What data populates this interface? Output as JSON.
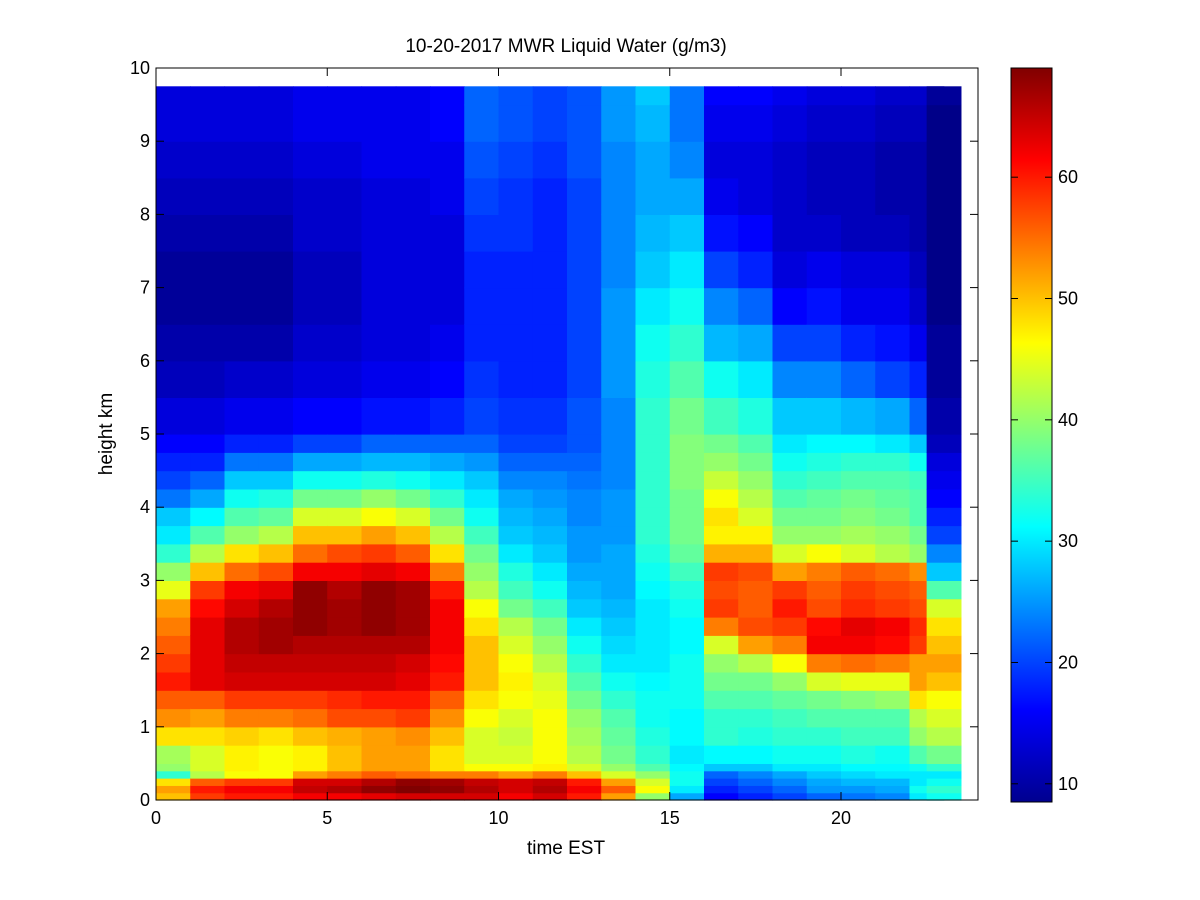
{
  "chart_data": {
    "type": "heatmap",
    "title": "10-20-2017 MWR Liquid Water (g/m3)",
    "xlabel": "time EST",
    "ylabel": "height km",
    "xlim": [
      0,
      24
    ],
    "ylim": [
      0,
      10
    ],
    "x_ticks": [
      0,
      5,
      10,
      15,
      20
    ],
    "y_ticks": [
      0,
      1,
      2,
      3,
      4,
      5,
      6,
      7,
      8,
      9,
      10
    ],
    "colorbar": {
      "colormap": "jet",
      "range": [
        8.5,
        69
      ],
      "ticks": [
        10,
        20,
        30,
        40,
        50,
        60
      ]
    },
    "x_centers": [
      0.5,
      1.5,
      2.5,
      3.5,
      4.5,
      5.5,
      6.5,
      7.5,
      8.5,
      9.5,
      10.5,
      11.5,
      12.5,
      13.5,
      14.5,
      15.5,
      16.5,
      17.5,
      18.5,
      19.5,
      20.5,
      21.5,
      22.5,
      23.0
    ],
    "x_bin_width": 1,
    "y_levels_km": [
      0,
      0.1,
      0.2,
      0.3,
      0.4,
      0.5,
      0.75,
      1.0,
      1.25,
      1.5,
      1.75,
      2.0,
      2.25,
      2.5,
      2.75,
      3.0,
      3.25,
      3.5,
      3.75,
      4.0,
      4.25,
      4.5,
      4.75,
      5.0,
      5.5,
      6.0,
      6.5,
      7.0,
      7.5,
      8.0,
      8.5,
      9.0,
      9.5,
      9.75
    ],
    "profiles": [
      [
        50,
        52,
        48,
        34,
        40,
        41,
        48,
        53,
        56,
        60,
        58,
        56,
        54,
        52,
        45,
        40,
        34,
        30,
        28,
        23,
        20,
        18,
        16,
        14,
        12,
        11,
        10,
        10,
        11,
        12,
        13,
        14,
        14,
        14
      ],
      [
        58,
        60,
        56,
        42,
        44,
        44,
        48,
        52,
        56,
        63,
        63,
        63,
        63,
        61,
        58,
        50,
        42,
        36,
        31,
        26,
        22,
        18,
        16,
        14,
        12,
        11,
        10,
        10,
        11,
        12,
        13,
        14,
        14,
        14
      ],
      [
        60,
        62,
        58,
        46,
        47,
        47,
        49,
        54,
        58,
        64,
        65,
        66,
        66,
        64,
        62,
        55,
        48,
        40,
        36,
        32,
        28,
        23,
        18,
        15,
        13,
        11,
        10,
        10,
        11,
        12,
        13,
        14,
        14,
        14
      ],
      [
        60,
        62,
        58,
        46,
        46,
        46,
        48,
        54,
        58,
        64,
        65,
        67,
        67,
        66,
        63,
        57,
        50,
        42,
        37,
        33,
        28,
        23,
        18,
        15,
        13,
        11,
        10,
        10,
        11,
        12,
        13,
        14,
        14,
        14
      ],
      [
        62,
        65,
        64,
        52,
        47,
        47,
        50,
        55,
        58,
        64,
        65,
        66,
        68,
        68,
        68,
        62,
        55,
        50,
        44,
        38,
        32,
        26,
        20,
        16,
        14,
        13,
        12,
        12,
        13,
        13,
        14,
        15,
        15,
        15
      ],
      [
        62,
        66,
        64,
        54,
        50,
        50,
        51,
        57,
        59,
        64,
        65,
        66,
        67,
        67,
        66,
        62,
        57,
        50,
        44,
        38,
        32,
        26,
        20,
        16,
        14,
        13,
        12,
        12,
        13,
        13,
        14,
        15,
        15,
        15
      ],
      [
        63,
        68,
        66,
        56,
        52,
        52,
        52,
        57,
        60,
        64,
        65,
        66,
        68,
        68,
        68,
        63,
        58,
        52,
        46,
        40,
        33,
        27,
        22,
        17,
        15,
        14,
        14,
        14,
        14,
        14,
        15,
        15,
        15,
        15
      ],
      [
        64,
        69,
        68,
        55,
        52,
        52,
        53,
        58,
        60,
        63,
        64,
        66,
        67,
        67,
        67,
        62,
        56,
        50,
        44,
        38,
        32,
        27,
        22,
        17,
        15,
        14,
        14,
        14,
        14,
        14,
        15,
        15,
        15,
        15
      ],
      [
        64,
        68,
        67,
        54,
        48,
        48,
        50,
        53,
        56,
        60,
        61,
        62,
        62,
        62,
        60,
        54,
        48,
        42,
        38,
        34,
        30,
        26,
        22,
        18,
        16,
        15,
        14,
        14,
        14,
        15,
        15,
        16,
        16,
        16
      ],
      [
        64,
        66,
        65,
        54,
        46,
        44,
        44,
        46,
        48,
        50,
        50,
        50,
        48,
        46,
        42,
        40,
        38,
        35,
        32,
        30,
        28,
        25,
        22,
        20,
        19,
        18,
        18,
        18,
        19,
        20,
        21,
        22,
        22,
        22
      ],
      [
        62,
        64,
        64,
        52,
        46,
        44,
        43,
        44,
        46,
        47,
        46,
        44,
        42,
        38,
        35,
        33,
        30,
        28,
        27,
        26,
        24,
        22,
        20,
        19,
        18,
        18,
        18,
        18,
        19,
        19,
        20,
        21,
        21,
        21
      ],
      [
        64,
        66,
        65,
        54,
        47,
        46,
        46,
        46,
        45,
        44,
        42,
        40,
        38,
        35,
        32,
        30,
        28,
        27,
        26,
        25,
        24,
        22,
        20,
        19,
        18,
        18,
        18,
        18,
        18,
        18,
        19,
        20,
        20,
        20
      ],
      [
        60,
        62,
        60,
        50,
        44,
        42,
        41,
        40,
        38,
        36,
        34,
        32,
        30,
        28,
        27,
        26,
        25,
        25,
        24,
        24,
        23,
        22,
        21,
        21,
        20,
        20,
        20,
        20,
        20,
        20,
        21,
        21,
        21,
        21
      ],
      [
        52,
        56,
        52,
        44,
        40,
        38,
        37,
        36,
        34,
        32,
        30,
        29,
        28,
        27,
        26,
        26,
        26,
        25,
        25,
        25,
        24,
        24,
        24,
        24,
        25,
        25,
        25,
        24,
        24,
        24,
        24,
        25,
        25,
        25
      ],
      [
        40,
        46,
        44,
        40,
        36,
        34,
        33,
        32,
        32,
        31,
        30,
        30,
        30,
        30,
        31,
        32,
        33,
        34,
        34,
        34,
        34,
        34,
        34,
        34,
        33,
        32,
        30,
        28,
        27,
        26,
        26,
        27,
        28,
        28
      ],
      [
        26,
        30,
        32,
        32,
        31,
        30,
        31,
        31,
        32,
        32,
        32,
        31,
        31,
        32,
        33,
        35,
        37,
        38,
        38,
        38,
        39,
        39,
        39,
        38,
        36,
        34,
        32,
        30,
        28,
        26,
        24,
        23,
        23,
        23
      ],
      [
        16,
        18,
        20,
        22,
        28,
        31,
        34,
        34,
        36,
        38,
        40,
        44,
        54,
        58,
        57,
        58,
        51,
        47,
        48,
        46,
        43,
        40,
        38,
        35,
        32,
        27,
        24,
        20,
        17,
        15,
        14,
        15,
        16,
        16
      ],
      [
        18,
        20,
        22,
        24,
        28,
        31,
        33,
        34,
        36,
        38,
        42,
        52,
        57,
        56,
        56,
        57,
        51,
        47,
        44,
        42,
        40,
        38,
        36,
        33,
        30,
        26,
        22,
        18,
        16,
        14,
        14,
        15,
        16,
        16
      ],
      [
        20,
        22,
        24,
        26,
        30,
        32,
        34,
        35,
        37,
        40,
        46,
        54,
        58,
        60,
        58,
        52,
        44,
        40,
        38,
        36,
        34,
        32,
        30,
        28,
        24,
        20,
        16,
        14,
        13,
        13,
        13,
        14,
        15,
        15
      ],
      [
        22,
        25,
        26,
        28,
        30,
        32,
        34,
        36,
        38,
        44,
        54,
        62,
        61,
        57,
        56,
        54,
        46,
        40,
        38,
        37,
        35,
        33,
        31,
        28,
        24,
        20,
        17,
        15,
        13,
        12,
        12,
        13,
        14,
        14
      ],
      [
        23,
        25,
        27,
        29,
        31,
        33,
        35,
        36,
        39,
        45,
        55,
        62,
        63,
        59,
        58,
        56,
        44,
        41,
        39,
        38,
        36,
        34,
        31,
        27,
        22,
        18,
        15,
        14,
        12,
        12,
        12,
        13,
        14,
        14
      ],
      [
        24,
        26,
        27,
        30,
        31,
        32,
        35,
        36,
        40,
        45,
        54,
        61,
        62,
        58,
        57,
        55,
        42,
        40,
        38,
        37,
        36,
        34,
        30,
        26,
        20,
        17,
        15,
        14,
        12,
        11,
        11,
        12,
        13,
        13
      ],
      [
        30,
        32,
        30,
        30,
        32,
        36,
        40,
        42,
        48,
        52,
        52,
        58,
        59,
        57,
        56,
        53,
        40,
        38,
        36,
        36,
        35,
        32,
        28,
        22,
        18,
        15,
        13,
        12,
        11,
        11,
        11,
        12,
        13,
        13
      ],
      [
        32,
        34,
        32,
        30,
        34,
        38,
        42,
        44,
        46,
        50,
        52,
        50,
        48,
        44,
        36,
        28,
        24,
        20,
        18,
        16,
        15,
        14,
        12,
        11,
        10,
        10,
        9,
        9,
        9,
        9,
        9,
        9,
        10,
        10
      ]
    ]
  }
}
